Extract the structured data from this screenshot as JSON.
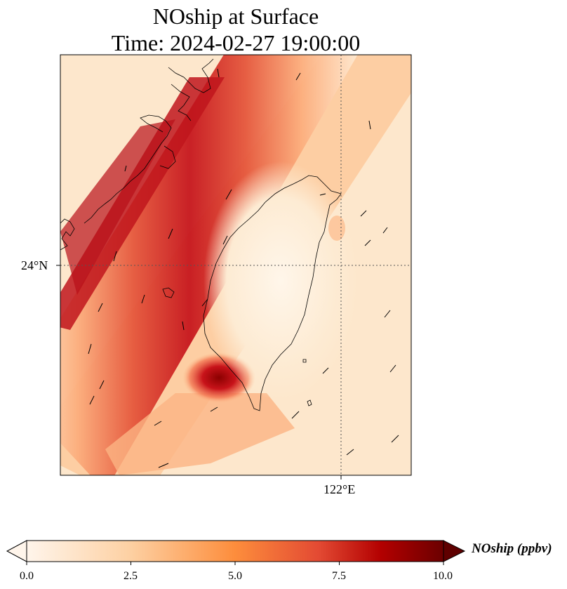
{
  "title": {
    "line1": "NOship at Surface",
    "line2": "Time: 2024-02-27 19:00:00"
  },
  "axes": {
    "lat_tick": "24°N",
    "lon_tick": "122°E"
  },
  "colorbar": {
    "label": "NOship (ppbv)",
    "ticks": [
      "0.0",
      "2.5",
      "5.0",
      "7.5",
      "10.0"
    ],
    "range": [
      0,
      10
    ],
    "colormap": [
      "#fff5eb",
      "#fdd0a2",
      "#fd8d3c",
      "#d94801",
      "#b10026",
      "#67000d"
    ]
  },
  "colors": {
    "background_low": "#fdebd3",
    "coastline": "#000000",
    "gridline": "#555555"
  }
}
